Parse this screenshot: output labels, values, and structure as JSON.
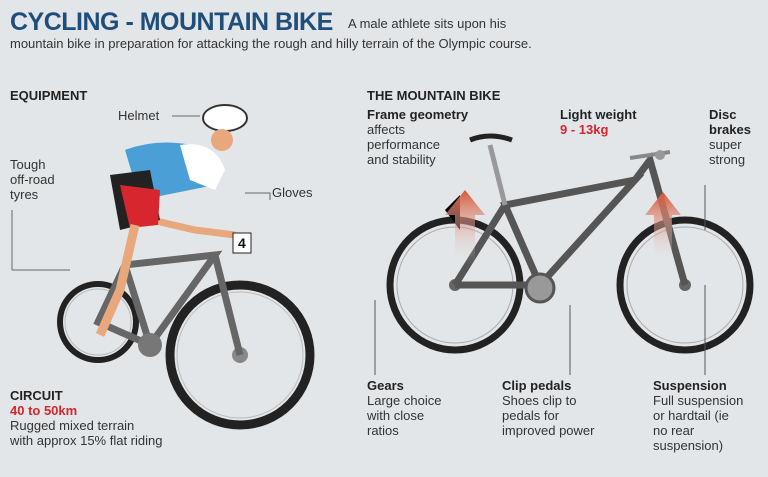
{
  "header": {
    "title": "CYCLING - MOUNTAIN BIKE",
    "intro_line1": "A male athlete sits upon his",
    "intro_line2": "mountain bike in preparation for attacking the rough and hilly terrain of the Olympic course."
  },
  "equipment": {
    "heading": "EQUIPMENT",
    "helmet": "Helmet",
    "gloves": "Gloves",
    "tyres": [
      "Tough",
      "off-road",
      "tyres"
    ],
    "bib_number": "4"
  },
  "circuit": {
    "heading": "CIRCUIT",
    "distance": "40 to 50km",
    "desc": [
      "Rugged mixed terrain",
      "with approx 15% flat riding"
    ]
  },
  "mountain_bike": {
    "heading": "THE MOUNTAIN BIKE",
    "frame": {
      "title": "Frame geometry",
      "desc": [
        "affects",
        "performance",
        "and stability"
      ]
    },
    "weight": {
      "title": "Light weight",
      "value": "9 - 13kg"
    },
    "brakes": {
      "title": [
        "Disc",
        "brakes"
      ],
      "desc": [
        "super",
        "strong"
      ]
    },
    "gears": {
      "title": "Gears",
      "desc": [
        "Large choice",
        "with close",
        "ratios"
      ]
    },
    "pedals": {
      "title": "Clip pedals",
      "desc": [
        "Shoes clip to",
        "pedals for",
        "improved power"
      ]
    },
    "suspension": {
      "title": "Suspension",
      "desc": [
        "Full suspension",
        "or hardtail (ie",
        "no rear",
        "suspension)"
      ]
    }
  },
  "colors": {
    "title": "#1f4e7a",
    "accent": "#d8262e",
    "background": "#e3e6e9"
  }
}
